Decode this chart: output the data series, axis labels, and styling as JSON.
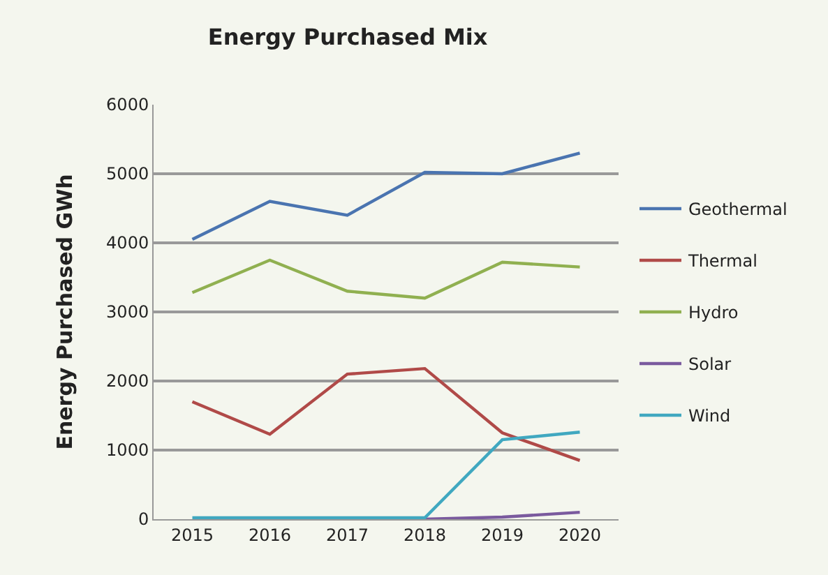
{
  "chart_data": {
    "type": "line",
    "title": "Energy Purchased Mix",
    "ylabel": "Energy Purchased GWh",
    "categories": [
      "2015",
      "2016",
      "2017",
      "2018",
      "2019",
      "2020"
    ],
    "series": [
      {
        "name": "Geothermal",
        "color": "#4a74b0",
        "values": [
          4050,
          4600,
          4400,
          5020,
          5000,
          5300
        ]
      },
      {
        "name": "Thermal",
        "color": "#b04a48",
        "values": [
          1700,
          1230,
          2100,
          2180,
          1250,
          850
        ]
      },
      {
        "name": "Hydro",
        "color": "#90b050",
        "values": [
          3280,
          3750,
          3300,
          3200,
          3720,
          3650
        ]
      },
      {
        "name": "Solar",
        "color": "#7a5a9e",
        "values": [
          null,
          null,
          null,
          0,
          30,
          100
        ]
      },
      {
        "name": "Wind",
        "color": "#40a8c0",
        "values": [
          20,
          20,
          20,
          20,
          1150,
          1260
        ]
      }
    ],
    "ylim": [
      0,
      6000
    ],
    "yticks": [
      0,
      1000,
      2000,
      3000,
      4000,
      5000,
      6000
    ],
    "grid": "y",
    "legend": "right",
    "marker": "none"
  }
}
